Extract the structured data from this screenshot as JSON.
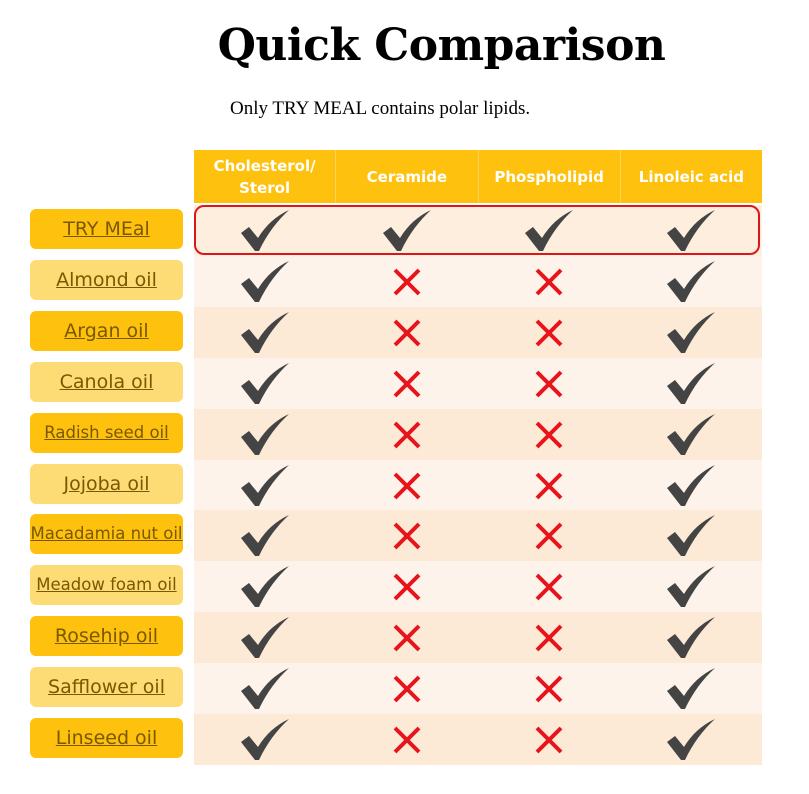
{
  "title": "Quick Comparison",
  "subtitle": "Only TRY MEAL contains polar lipids.",
  "columns": [
    "Cholesterol/ Sterol",
    "Ceramide",
    "Phospholipid",
    "Linoleic acid"
  ],
  "colors": {
    "header": "#fdc10e",
    "label_dark": "#fdc10e",
    "label_light": "#fddb75",
    "check": "#444444",
    "cross": "#e8141c",
    "highlight": "#d9181e"
  },
  "rows": [
    {
      "label": "TRY MEal",
      "values": [
        true,
        true,
        true,
        true
      ]
    },
    {
      "label": "Almond oil",
      "values": [
        true,
        false,
        false,
        true
      ]
    },
    {
      "label": "Argan oil",
      "values": [
        true,
        false,
        false,
        true
      ]
    },
    {
      "label": "Canola oil",
      "values": [
        true,
        false,
        false,
        true
      ]
    },
    {
      "label": "Radish seed oil",
      "values": [
        true,
        false,
        false,
        true
      ]
    },
    {
      "label": "Jojoba oil",
      "values": [
        true,
        false,
        false,
        true
      ]
    },
    {
      "label": "Macadamia nut oil",
      "values": [
        true,
        false,
        false,
        true
      ]
    },
    {
      "label": "Meadow foam oil",
      "values": [
        true,
        false,
        false,
        true
      ]
    },
    {
      "label": "Rosehip oil",
      "values": [
        true,
        false,
        false,
        true
      ]
    },
    {
      "label": "Safflower oil",
      "values": [
        true,
        false,
        false,
        true
      ]
    },
    {
      "label": "Linseed oil",
      "values": [
        true,
        false,
        false,
        true
      ]
    }
  ]
}
